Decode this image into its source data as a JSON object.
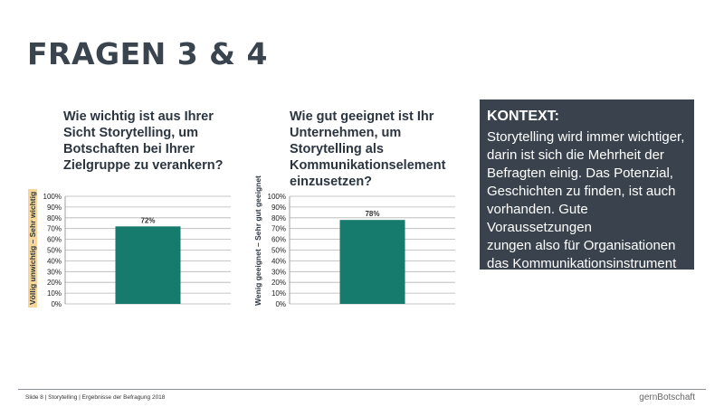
{
  "slide": {
    "title": "FRAGEN 3 & 4",
    "footer": "Slide 8 | Storytelling | Ergebnisse der Befragung 2018",
    "brand": "gernBotschaft"
  },
  "question1": "Wie wichtig ist aus Ihrer Sicht Storytelling, um Botschaften bei Ihrer Zielgruppe zu verankern?",
  "question2": "Wie gut geeignet ist Ihr Unternehmen, um Storytelling als Kommunikationselement einzusetzen?",
  "context": {
    "heading": "KONTEXT:",
    "text": "Storytelling wird immer wichtiger,\ndarin ist sich die Mehrheit der\nBefragten einig. Das Potenzial,\nGeschichten zu finden, ist auch\nvorhanden. Gute Voraussetzungen\nzungen also für Organisationen\ndas Kommunikationsinstrument\nstärker einzusetzen."
  },
  "colors": {
    "bar": "#167a6c",
    "context_bg": "#3a434d",
    "highlight": "#f6d69a"
  },
  "chart_data": [
    {
      "type": "bar",
      "ylabel": "Völlig unwichtig – Sehr wichtig",
      "ylim": [
        0,
        100
      ],
      "yticks": [
        "0%",
        "10%",
        "20%",
        "30%",
        "40%",
        "50%",
        "60%",
        "70%",
        "80%",
        "90%",
        "100%"
      ],
      "values": [
        72
      ],
      "value_labels": [
        "72%"
      ],
      "grid": true
    },
    {
      "type": "bar",
      "ylabel": "Wenig geeignet – Sehr gut geeignet",
      "ylim": [
        0,
        100
      ],
      "yticks": [
        "0%",
        "10%",
        "20%",
        "30%",
        "40%",
        "50%",
        "60%",
        "70%",
        "80%",
        "90%",
        "100%"
      ],
      "values": [
        78
      ],
      "value_labels": [
        "78%"
      ],
      "grid": true
    }
  ]
}
